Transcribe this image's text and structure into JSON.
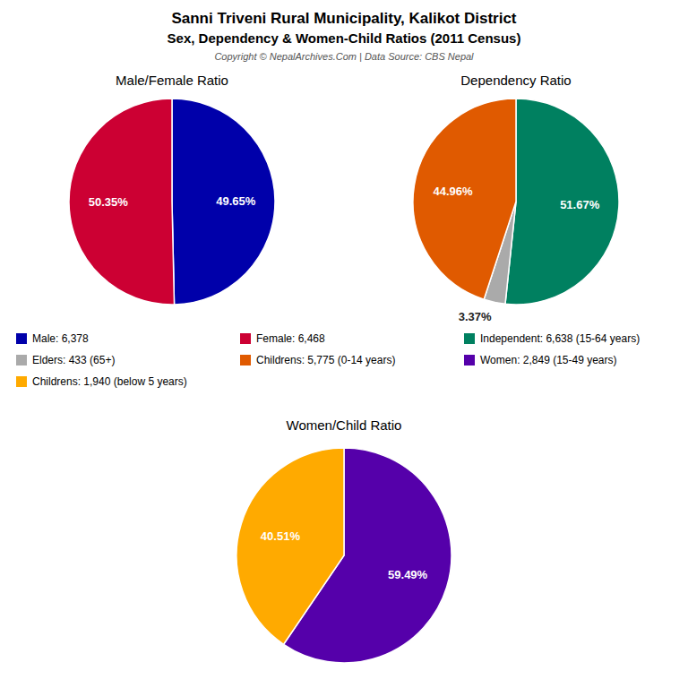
{
  "title": "Sanni Triveni Rural Municipality, Kalikot District",
  "subtitle": "Sex, Dependency & Women-Child Ratios (2011 Census)",
  "annotations": [
    "Copyright © NepalArchives.Com | Data Source: CBS Nepal"
  ],
  "chart_data": [
    {
      "type": "pie",
      "title": "Male/Female Ratio",
      "categories": [
        "Male: 6,378",
        "Female: 6,468"
      ],
      "values": [
        49.65,
        50.35
      ],
      "value_labels": [
        "49.65%",
        "50.35%"
      ],
      "colors": [
        "#0000aa",
        "#cc0033"
      ],
      "data_labels": true,
      "legend": "bottom"
    },
    {
      "type": "pie",
      "title": "Dependency Ratio",
      "categories": [
        "Independent: 6,638 (15-64 years)",
        "Elders: 433 (65+)",
        "Childrens: 5,775 (0-14 years)"
      ],
      "values": [
        51.67,
        3.37,
        44.96
      ],
      "value_labels": [
        "51.67%",
        "3.37%",
        "44.96%"
      ],
      "colors": [
        "#008060",
        "#aaaaaa",
        "#e05a00"
      ],
      "data_labels": true,
      "legend": "bottom"
    },
    {
      "type": "pie",
      "title": "Women/Child Ratio",
      "categories": [
        "Women: 2,849 (15-49 years)",
        "Childrens: 1,940 (below 5 years)"
      ],
      "values": [
        59.49,
        40.51
      ],
      "value_labels": [
        "59.49%",
        "40.51%"
      ],
      "colors": [
        "#5500aa",
        "#ffaa00"
      ],
      "data_labels": true,
      "legend": "bottom"
    }
  ]
}
